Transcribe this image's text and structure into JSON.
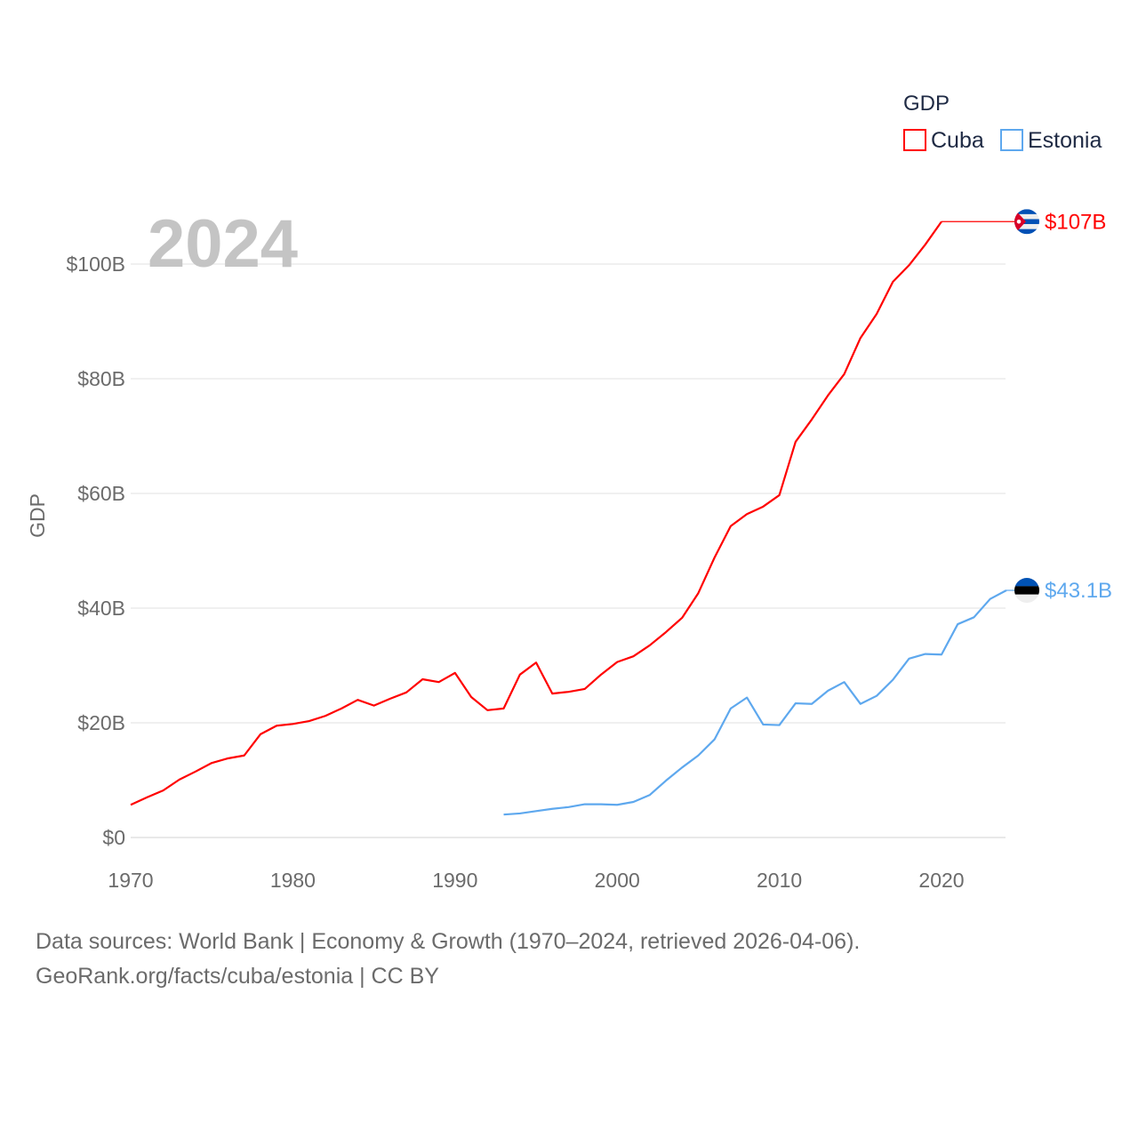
{
  "chart_data": {
    "type": "line",
    "title": "GDP",
    "year_label": "2024",
    "ylabel": "GDP",
    "xlabel": "",
    "xlim": [
      1970,
      2024
    ],
    "ylim": [
      0,
      110
    ],
    "x_ticks": [
      1970,
      1980,
      1990,
      2000,
      2010,
      2020
    ],
    "x_tick_labels": [
      "1970",
      "1980",
      "1990",
      "2000",
      "2010",
      "2020"
    ],
    "y_ticks": [
      0,
      20,
      40,
      60,
      80,
      100
    ],
    "y_tick_labels": [
      "$0",
      "$20B",
      "$40B",
      "$60B",
      "$80B",
      "$100B"
    ],
    "grid": true,
    "legend": {
      "title": "GDP",
      "position": "top-right"
    },
    "series": [
      {
        "name": "Cuba",
        "color": "#ff0000",
        "end_label": "$107B",
        "flag": "cuba-flag",
        "x": [
          1970,
          1971,
          1972,
          1973,
          1974,
          1975,
          1976,
          1977,
          1978,
          1979,
          1980,
          1981,
          1982,
          1983,
          1984,
          1985,
          1986,
          1987,
          1988,
          1989,
          1990,
          1991,
          1992,
          1993,
          1994,
          1995,
          1996,
          1997,
          1998,
          1999,
          2000,
          2001,
          2002,
          2003,
          2004,
          2005,
          2006,
          2007,
          2008,
          2009,
          2010,
          2011,
          2012,
          2013,
          2014,
          2015,
          2016,
          2017,
          2018,
          2019,
          2020
        ],
        "values": [
          5.7,
          7.0,
          8.2,
          10.1,
          11.5,
          13.0,
          13.8,
          14.3,
          18.0,
          19.5,
          19.8,
          20.3,
          21.2,
          22.5,
          24.0,
          23.0,
          24.2,
          25.3,
          27.6,
          27.1,
          28.7,
          24.5,
          22.2,
          22.5,
          28.4,
          30.5,
          25.1,
          25.4,
          25.9,
          28.4,
          30.6,
          31.6,
          33.5,
          35.8,
          38.3,
          42.6,
          48.8,
          54.3,
          56.4,
          57.7,
          59.7,
          69.0,
          72.9,
          77.1,
          80.8,
          87.1,
          91.3,
          96.9,
          99.8,
          103.4,
          107.4
        ]
      },
      {
        "name": "Estonia",
        "color": "#5ea8ee",
        "end_label": "$43.1B",
        "flag": "estonia-flag",
        "x": [
          1993,
          1994,
          1995,
          1996,
          1997,
          1998,
          1999,
          2000,
          2001,
          2002,
          2003,
          2004,
          2005,
          2006,
          2007,
          2008,
          2009,
          2010,
          2011,
          2012,
          2013,
          2014,
          2015,
          2016,
          2017,
          2018,
          2019,
          2020,
          2021,
          2022,
          2023,
          2024
        ],
        "values": [
          4.0,
          4.2,
          4.6,
          5.0,
          5.3,
          5.8,
          5.8,
          5.7,
          6.2,
          7.4,
          9.9,
          12.2,
          14.3,
          17.1,
          22.5,
          24.4,
          19.7,
          19.6,
          23.4,
          23.3,
          25.6,
          27.1,
          23.3,
          24.7,
          27.5,
          31.2,
          32.0,
          31.9,
          37.2,
          38.4,
          41.6,
          43.1
        ]
      }
    ]
  },
  "footer": {
    "line1": "Data sources: World Bank | Economy & Growth (1970–2024, retrieved 2026-04-06).",
    "line2": "GeoRank.org/facts/cuba/estonia | CC BY"
  }
}
